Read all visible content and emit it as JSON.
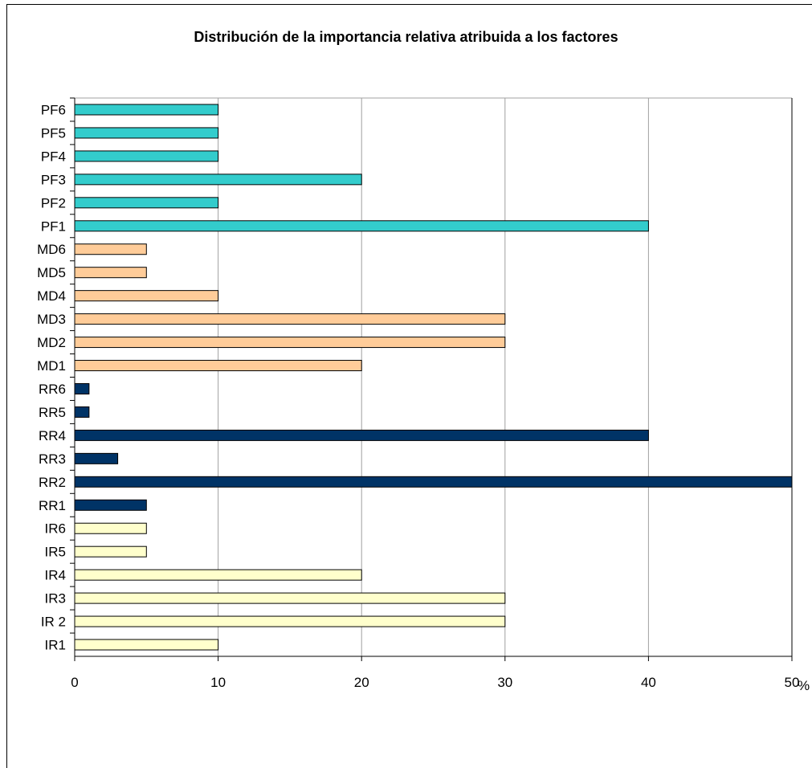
{
  "chart_data": {
    "type": "bar",
    "orientation": "horizontal",
    "title": "Distribución de la importancia relativa atribuida a los factores",
    "xlabel": "%",
    "ylabel": "",
    "xlim": [
      0,
      50
    ],
    "x_ticks": [
      "0",
      "10",
      "20",
      "30",
      "40",
      "50"
    ],
    "grid": "vertical",
    "legend": "none",
    "categories": [
      "PF6",
      "PF5",
      "PF4",
      "PF3",
      "PF2",
      "PF1",
      "MD6",
      "MD5",
      "MD4",
      "MD3",
      "MD2",
      "MD1",
      "RR6",
      "RR5",
      "RR4",
      "RR3",
      "RR2",
      "RR1",
      "IR6",
      "IR5",
      "IR4",
      "IR3",
      "IR 2",
      "IR1"
    ],
    "values": [
      10,
      10,
      10,
      20,
      10,
      40,
      5,
      5,
      10,
      30,
      30,
      20,
      1,
      1,
      40,
      3,
      50,
      5,
      5,
      5,
      20,
      30,
      30,
      10
    ],
    "groups": [
      {
        "prefix": "PF",
        "color": "#33cccc"
      },
      {
        "prefix": "MD",
        "color": "#ffcc99"
      },
      {
        "prefix": "RR",
        "color": "#003366"
      },
      {
        "prefix": "IR",
        "color": "#ffffcc"
      }
    ]
  }
}
